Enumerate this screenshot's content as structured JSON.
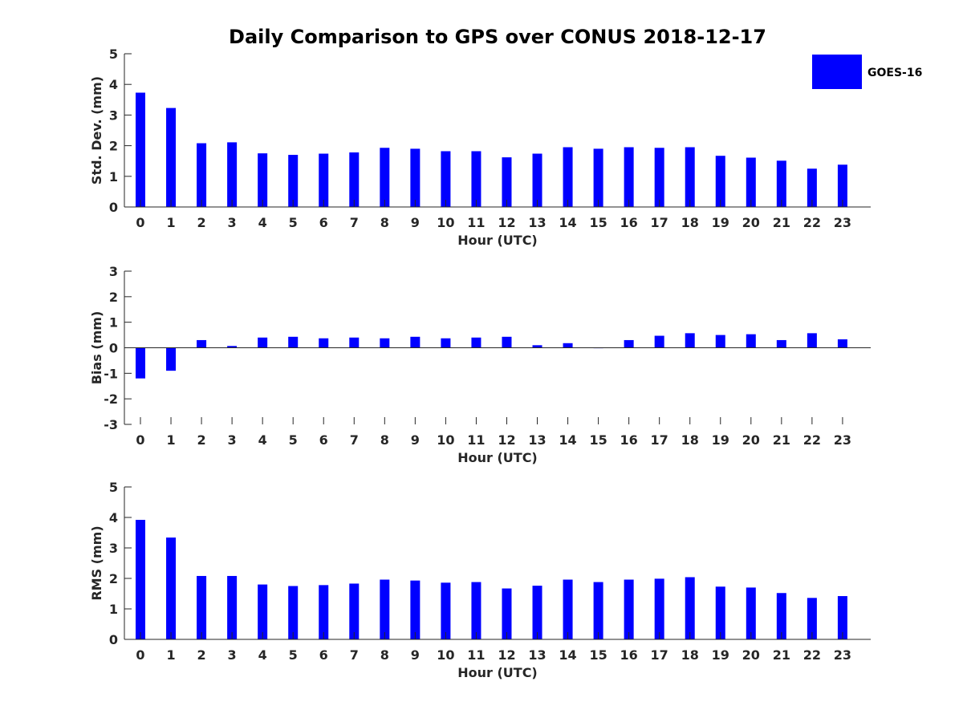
{
  "chart_data": [
    {
      "type": "bar",
      "title": "Daily Comparison to GPS over CONUS 2018-12-17",
      "xlabel": "Hour (UTC)",
      "ylabel": "Std. Dev. (mm)",
      "ylim": [
        0,
        5
      ],
      "yticks": [
        0,
        1,
        2,
        3,
        4,
        5
      ],
      "categories": [
        "0",
        "1",
        "2",
        "3",
        "4",
        "5",
        "6",
        "7",
        "8",
        "9",
        "10",
        "11",
        "12",
        "13",
        "14",
        "15",
        "16",
        "17",
        "18",
        "19",
        "20",
        "21",
        "22",
        "23"
      ],
      "series": [
        {
          "name": "GOES-16",
          "color": "#0000ff",
          "values": [
            3.73,
            3.23,
            2.08,
            2.11,
            1.75,
            1.7,
            1.74,
            1.78,
            1.93,
            1.9,
            1.82,
            1.82,
            1.62,
            1.74,
            1.95,
            1.9,
            1.95,
            1.93,
            1.95,
            1.67,
            1.61,
            1.51,
            1.25,
            1.38
          ]
        }
      ],
      "legend": {
        "position": "top-right",
        "label": "GOES-16"
      }
    },
    {
      "type": "bar",
      "title": "",
      "xlabel": "Hour (UTC)",
      "ylabel": "Bias (mm)",
      "ylim": [
        -3,
        3
      ],
      "yticks": [
        -3,
        -2,
        -1,
        0,
        1,
        2,
        3
      ],
      "categories": [
        "0",
        "1",
        "2",
        "3",
        "4",
        "5",
        "6",
        "7",
        "8",
        "9",
        "10",
        "11",
        "12",
        "13",
        "14",
        "15",
        "16",
        "17",
        "18",
        "19",
        "20",
        "21",
        "22",
        "23"
      ],
      "series": [
        {
          "name": "GOES-16",
          "color": "#0000ff",
          "values": [
            -1.2,
            -0.9,
            0.3,
            0.07,
            0.4,
            0.43,
            0.37,
            0.4,
            0.37,
            0.43,
            0.37,
            0.4,
            0.43,
            0.1,
            0.18,
            0.0,
            0.3,
            0.47,
            0.57,
            0.5,
            0.53,
            0.3,
            0.57,
            0.33
          ]
        }
      ]
    },
    {
      "type": "bar",
      "title": "",
      "xlabel": "Hour (UTC)",
      "ylabel": "RMS (mm)",
      "ylim": [
        0,
        5
      ],
      "yticks": [
        0,
        1,
        2,
        3,
        4,
        5
      ],
      "categories": [
        "0",
        "1",
        "2",
        "3",
        "4",
        "5",
        "6",
        "7",
        "8",
        "9",
        "10",
        "11",
        "12",
        "13",
        "14",
        "15",
        "16",
        "17",
        "18",
        "19",
        "20",
        "21",
        "22",
        "23"
      ],
      "series": [
        {
          "name": "GOES-16",
          "color": "#0000ff",
          "values": [
            3.92,
            3.34,
            2.08,
            2.08,
            1.8,
            1.75,
            1.78,
            1.83,
            1.96,
            1.93,
            1.86,
            1.88,
            1.67,
            1.76,
            1.96,
            1.88,
            1.96,
            1.99,
            2.04,
            1.73,
            1.7,
            1.52,
            1.36,
            1.42
          ]
        }
      ]
    }
  ]
}
